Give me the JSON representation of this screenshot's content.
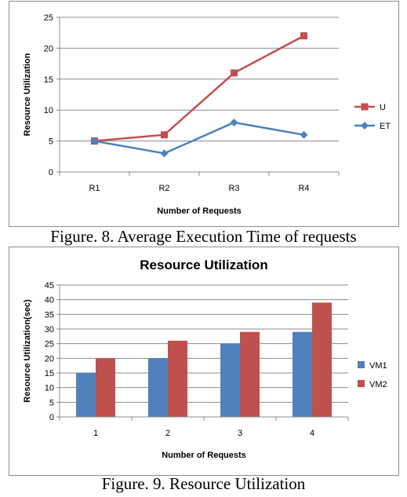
{
  "chart_data": [
    {
      "type": "line",
      "title": "",
      "xlabel": "Number of Requests",
      "ylabel": "Resource Utilization",
      "categories": [
        "R1",
        "R2",
        "R3",
        "R4"
      ],
      "ylim": [
        0,
        25
      ],
      "yticks": [
        "0",
        "5",
        "10",
        "15",
        "20",
        "25"
      ],
      "grid": true,
      "legend": "right",
      "series": [
        {
          "name": "U",
          "values": [
            5,
            6,
            16,
            22
          ],
          "color": "#c0504d",
          "marker": "square"
        },
        {
          "name": "ET",
          "values": [
            5,
            3,
            8,
            6
          ],
          "color": "#4f81bd",
          "marker": "diamond"
        }
      ]
    },
    {
      "type": "bar",
      "title": "Resource Utilization",
      "xlabel": "Number of Requests",
      "ylabel": "Resource Utilization(sec)",
      "categories": [
        "1",
        "2",
        "3",
        "4"
      ],
      "ylim": [
        0,
        45
      ],
      "yticks": [
        "0",
        "5",
        "10",
        "15",
        "20",
        "25",
        "30",
        "35",
        "40",
        "45"
      ],
      "grid": true,
      "legend": "right",
      "series": [
        {
          "name": "VM1",
          "values": [
            15,
            20,
            25,
            29
          ],
          "color": "#4f81bd"
        },
        {
          "name": "VM2",
          "values": [
            20,
            26,
            29,
            39
          ],
          "color": "#c0504d"
        }
      ]
    }
  ],
  "captions": {
    "fig8": "Figure. 8. Average Execution Time of requests",
    "fig9": "Figure. 9. Resource Utilization"
  }
}
